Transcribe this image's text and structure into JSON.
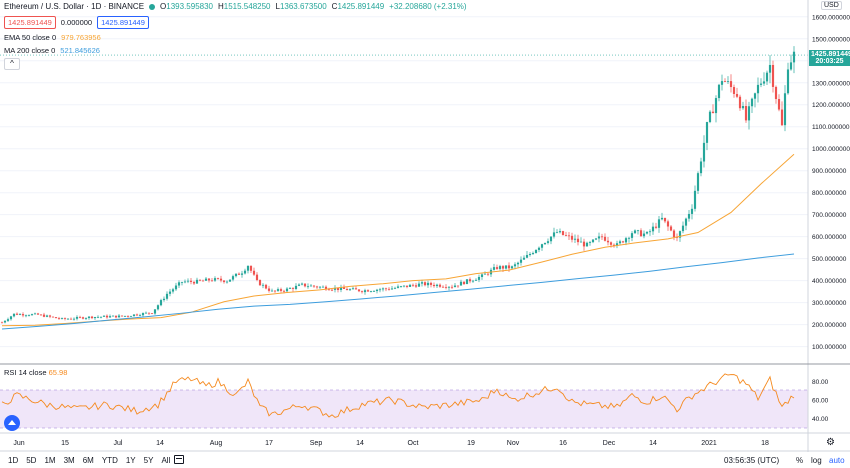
{
  "header": {
    "title": "Ethereum / U.S. Dollar · 1D · BINANCE",
    "ohlc": [
      {
        "key": "O",
        "value": "1393.595830"
      },
      {
        "key": "H",
        "value": "1515.548250"
      },
      {
        "key": "L",
        "value": "1363.673500"
      },
      {
        "key": "C",
        "value": "1425.891449"
      }
    ],
    "change": "+32.208680 (+2.31%)",
    "bid": "1425.891449",
    "spread": "0.000000",
    "ask": "1425.891449"
  },
  "indicators": {
    "ema": {
      "label": "EMA 50 close 0",
      "value": "979.763956",
      "color": "#f7a535"
    },
    "ma": {
      "label": "MA 200 close 0",
      "value": "521.845626",
      "color": "#3d9ddd"
    },
    "rsi": {
      "label": "RSI 14 close",
      "value": "65.98",
      "color": "#f58a1f"
    }
  },
  "price_axis": {
    "currency": "USD",
    "last_price": "1425.891449",
    "countdown": "20:03:25",
    "ticks": [
      "1600.000000",
      "1500.000000",
      "1400.000000",
      "1300.000000",
      "1200.000000",
      "1100.000000",
      "1000.000000",
      "900.000000",
      "800.000000",
      "700.000000",
      "600.000000",
      "500.000000",
      "400.000000",
      "300.000000",
      "200.000000",
      "100.000000"
    ]
  },
  "rsi_axis": {
    "ticks": [
      "80.00",
      "60.00",
      "40.00"
    ]
  },
  "time_axis": {
    "ticks": [
      "Jun",
      "15",
      "Jul",
      "14",
      "Aug",
      "17",
      "Sep",
      "14",
      "Oct",
      "19",
      "Nov",
      "16",
      "Dec",
      "14",
      "2021",
      "18"
    ]
  },
  "bottom_bar": {
    "ranges": [
      "1D",
      "5D",
      "1M",
      "3M",
      "6M",
      "YTD",
      "1Y",
      "5Y",
      "All"
    ],
    "clock": "03:56:35 (UTC)",
    "percent": "%",
    "log": "log",
    "auto": "auto"
  },
  "colors": {
    "up": "#26a69a",
    "down": "#ef5350",
    "rsi_band": "#e9dcf6",
    "grid": "#f0f3fa"
  },
  "chart_data": {
    "type": "candlestick",
    "title": "Ethereum / U.S. Dollar · 1D · BINANCE",
    "ylim": [
      30,
      1640
    ],
    "rsi_ylim": [
      25,
      95
    ],
    "rsi_bands": [
      30,
      70
    ],
    "ema_values": [
      195,
      197,
      205,
      216,
      225,
      232,
      256,
      304,
      330,
      346,
      358,
      374,
      386,
      400,
      408,
      432,
      448,
      485,
      520,
      552,
      572,
      590,
      619,
      710,
      840,
      975
    ],
    "ma_values": [
      180,
      192,
      205,
      221,
      236,
      252,
      270,
      284,
      292,
      304,
      317,
      331,
      346,
      361,
      377,
      392,
      409,
      425,
      443,
      463,
      482,
      503,
      521
    ],
    "price_keyframes": [
      [
        0,
        210
      ],
      [
        4,
        248
      ],
      [
        12,
        245
      ],
      [
        20,
        225
      ],
      [
        30,
        235
      ],
      [
        40,
        238
      ],
      [
        50,
        255
      ],
      [
        55,
        340
      ],
      [
        60,
        395
      ],
      [
        65,
        395
      ],
      [
        70,
        405
      ],
      [
        75,
        400
      ],
      [
        80,
        440
      ],
      [
        82,
        470
      ],
      [
        85,
        395
      ],
      [
        90,
        350
      ],
      [
        95,
        360
      ],
      [
        100,
        380
      ],
      [
        110,
        365
      ],
      [
        120,
        355
      ],
      [
        130,
        365
      ],
      [
        140,
        385
      ],
      [
        150,
        375
      ],
      [
        160,
        420
      ],
      [
        165,
        460
      ],
      [
        170,
        460
      ],
      [
        175,
        510
      ],
      [
        180,
        570
      ],
      [
        185,
        620
      ],
      [
        190,
        590
      ],
      [
        195,
        560
      ],
      [
        200,
        600
      ],
      [
        205,
        560
      ],
      [
        210,
        620
      ],
      [
        215,
        610
      ],
      [
        220,
        680
      ],
      [
        225,
        590
      ],
      [
        230,
        740
      ],
      [
        235,
        1100
      ],
      [
        240,
        1320
      ],
      [
        245,
        1250
      ],
      [
        248,
        1130
      ],
      [
        252,
        1280
      ],
      [
        256,
        1380
      ],
      [
        260,
        1100
      ],
      [
        262,
        1390
      ],
      [
        264,
        1426
      ]
    ],
    "rsi_keyframes": [
      [
        0,
        55
      ],
      [
        5,
        65
      ],
      [
        15,
        55
      ],
      [
        25,
        50
      ],
      [
        35,
        55
      ],
      [
        45,
        48
      ],
      [
        52,
        55
      ],
      [
        58,
        80
      ],
      [
        63,
        83
      ],
      [
        68,
        75
      ],
      [
        72,
        80
      ],
      [
        78,
        65
      ],
      [
        82,
        80
      ],
      [
        86,
        52
      ],
      [
        90,
        44
      ],
      [
        100,
        55
      ],
      [
        110,
        43
      ],
      [
        120,
        55
      ],
      [
        130,
        60
      ],
      [
        140,
        52
      ],
      [
        150,
        55
      ],
      [
        160,
        60
      ],
      [
        165,
        72
      ],
      [
        170,
        60
      ],
      [
        180,
        70
      ],
      [
        185,
        75
      ],
      [
        190,
        58
      ],
      [
        195,
        55
      ],
      [
        205,
        52
      ],
      [
        210,
        65
      ],
      [
        215,
        58
      ],
      [
        220,
        65
      ],
      [
        225,
        50
      ],
      [
        230,
        65
      ],
      [
        238,
        80
      ],
      [
        243,
        88
      ],
      [
        248,
        78
      ],
      [
        252,
        62
      ],
      [
        256,
        82
      ],
      [
        260,
        52
      ],
      [
        264,
        66
      ]
    ]
  }
}
